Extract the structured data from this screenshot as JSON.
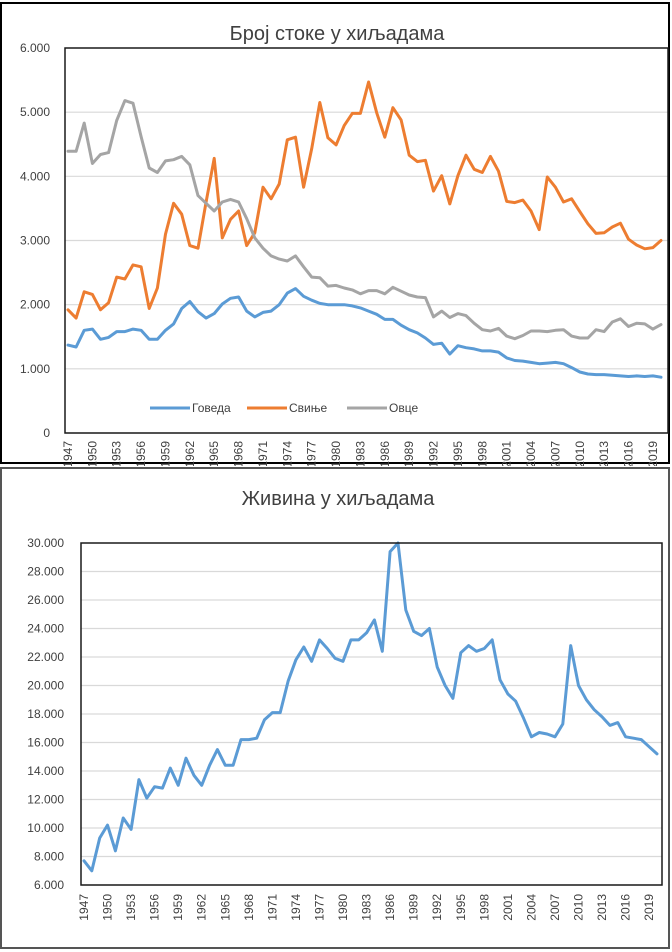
{
  "chart_data": [
    {
      "type": "line",
      "title": "Број стоке у хиљадама",
      "xlabel": "",
      "ylabel": "",
      "ylim": [
        0,
        6000
      ],
      "yticks": [
        "0",
        "1.000",
        "2.000",
        "3.000",
        "4.000",
        "5.000",
        "6.000"
      ],
      "ytick_values": [
        0,
        1000,
        2000,
        3000,
        4000,
        5000,
        6000
      ],
      "grid": true,
      "legend": "bottom-inside",
      "x": [
        1947,
        1948,
        1949,
        1950,
        1951,
        1952,
        1953,
        1954,
        1955,
        1956,
        1957,
        1958,
        1959,
        1960,
        1961,
        1962,
        1963,
        1964,
        1965,
        1966,
        1967,
        1968,
        1969,
        1970,
        1971,
        1972,
        1973,
        1974,
        1975,
        1976,
        1977,
        1978,
        1979,
        1980,
        1981,
        1982,
        1983,
        1984,
        1985,
        1986,
        1987,
        1988,
        1989,
        1990,
        1991,
        1992,
        1993,
        1994,
        1995,
        1996,
        1997,
        1998,
        1999,
        2000,
        2001,
        2002,
        2003,
        2004,
        2005,
        2006,
        2007,
        2008,
        2009,
        2010,
        2011,
        2012,
        2013,
        2014,
        2015,
        2016,
        2017,
        2018,
        2019,
        2020
      ],
      "xtick_labels": [
        "1947",
        "1950",
        "1953",
        "1956",
        "1959",
        "1962",
        "1965",
        "1968",
        "1971",
        "1974",
        "1977",
        "1980",
        "1983",
        "1986",
        "1989",
        "1992",
        "1995",
        "1998",
        "2001",
        "2004",
        "2007",
        "2010",
        "2013",
        "2016",
        "2019"
      ],
      "series": [
        {
          "name": "Говеда",
          "color": "#5B9BD5",
          "values": [
            1370,
            1340,
            1600,
            1620,
            1460,
            1490,
            1580,
            1580,
            1620,
            1600,
            1460,
            1460,
            1600,
            1700,
            1940,
            2050,
            1890,
            1790,
            1860,
            2010,
            2100,
            2120,
            1900,
            1810,
            1880,
            1900,
            2000,
            2180,
            2250,
            2130,
            2070,
            2020,
            2000,
            2000,
            2000,
            1980,
            1950,
            1900,
            1850,
            1770,
            1770,
            1680,
            1610,
            1560,
            1480,
            1380,
            1400,
            1230,
            1360,
            1330,
            1310,
            1280,
            1280,
            1260,
            1170,
            1130,
            1120,
            1100,
            1080,
            1090,
            1100,
            1080,
            1020,
            950,
            920,
            910,
            910,
            900,
            890,
            880,
            890,
            880,
            890,
            870
          ]
        },
        {
          "name": "Свиње",
          "color": "#ED7D31",
          "values": [
            1920,
            1790,
            2200,
            2160,
            1920,
            2030,
            2430,
            2400,
            2620,
            2590,
            1940,
            2260,
            3100,
            3580,
            3410,
            2920,
            2880,
            3600,
            4280,
            3040,
            3330,
            3460,
            2920,
            3120,
            3830,
            3650,
            3880,
            4570,
            4610,
            3830,
            4430,
            5150,
            4600,
            4490,
            4790,
            4980,
            4980,
            5470,
            4990,
            4610,
            5070,
            4880,
            4330,
            4230,
            4250,
            3770,
            4010,
            3570,
            4010,
            4330,
            4110,
            4060,
            4310,
            4080,
            3610,
            3590,
            3630,
            3460,
            3170,
            3990,
            3830,
            3600,
            3650,
            3450,
            3260,
            3110,
            3120,
            3210,
            3270,
            3020,
            2930,
            2870,
            2890,
            3000
          ]
        },
        {
          "name": "Овце",
          "color": "#A5A5A5",
          "values": [
            4390,
            4390,
            4830,
            4200,
            4340,
            4370,
            4870,
            5180,
            5140,
            4620,
            4130,
            4060,
            4240,
            4260,
            4310,
            4180,
            3700,
            3580,
            3460,
            3600,
            3640,
            3600,
            3340,
            3040,
            2880,
            2760,
            2710,
            2680,
            2760,
            2590,
            2430,
            2420,
            2290,
            2300,
            2260,
            2230,
            2170,
            2220,
            2220,
            2170,
            2270,
            2210,
            2150,
            2120,
            2110,
            1810,
            1900,
            1800,
            1860,
            1830,
            1710,
            1610,
            1590,
            1630,
            1510,
            1470,
            1520,
            1590,
            1590,
            1580,
            1600,
            1610,
            1510,
            1480,
            1480,
            1610,
            1580,
            1730,
            1780,
            1660,
            1710,
            1700,
            1620,
            1690
          ]
        }
      ]
    },
    {
      "type": "line",
      "title": "Живина у хиљадама",
      "xlabel": "",
      "ylabel": "",
      "ylim": [
        6000,
        30000
      ],
      "yticks": [
        "6.000",
        "8.000",
        "10.000",
        "12.000",
        "14.000",
        "16.000",
        "18.000",
        "20.000",
        "22.000",
        "24.000",
        "26.000",
        "28.000",
        "30.000"
      ],
      "ytick_values": [
        6000,
        8000,
        10000,
        12000,
        14000,
        16000,
        18000,
        20000,
        22000,
        24000,
        26000,
        28000,
        30000
      ],
      "grid": true,
      "legend": "none",
      "x": [
        1947,
        1948,
        1949,
        1950,
        1951,
        1952,
        1953,
        1954,
        1955,
        1956,
        1957,
        1958,
        1959,
        1960,
        1961,
        1962,
        1963,
        1964,
        1965,
        1966,
        1967,
        1968,
        1969,
        1970,
        1971,
        1972,
        1973,
        1974,
        1975,
        1976,
        1977,
        1978,
        1979,
        1980,
        1981,
        1982,
        1983,
        1984,
        1985,
        1986,
        1987,
        1988,
        1989,
        1990,
        1991,
        1992,
        1993,
        1994,
        1995,
        1996,
        1997,
        1998,
        1999,
        2000,
        2001,
        2002,
        2003,
        2004,
        2005,
        2006,
        2007,
        2008,
        2009,
        2010,
        2011,
        2012,
        2013,
        2014,
        2015,
        2016,
        2017,
        2018,
        2019,
        2020
      ],
      "xtick_labels": [
        "1947",
        "1950",
        "1953",
        "1956",
        "1959",
        "1962",
        "1965",
        "1968",
        "1971",
        "1974",
        "1977",
        "1980",
        "1983",
        "1986",
        "1989",
        "1992",
        "1995",
        "1998",
        "2001",
        "2004",
        "2007",
        "2010",
        "2013",
        "2016",
        "2019"
      ],
      "series": [
        {
          "name": "Живина",
          "color": "#5B9BD5",
          "values": [
            7700,
            7000,
            9300,
            10200,
            8400,
            10700,
            9900,
            13400,
            12100,
            12900,
            12800,
            14200,
            13000,
            14900,
            13700,
            13000,
            14400,
            15500,
            14400,
            14400,
            16200,
            16200,
            16300,
            17600,
            18100,
            18100,
            20300,
            21800,
            22700,
            21700,
            23200,
            22600,
            21900,
            21700,
            23200,
            23200,
            23700,
            24600,
            22400,
            29400,
            30000,
            25300,
            23800,
            23500,
            24000,
            21300,
            20000,
            19100,
            22300,
            22800,
            22400,
            22600,
            23200,
            20400,
            19400,
            18900,
            17700,
            16400,
            16700,
            16600,
            16400,
            17300,
            22800,
            20000,
            19000,
            18300,
            17800,
            17200,
            17400,
            16400,
            16300,
            16200,
            15700,
            15200
          ]
        }
      ]
    }
  ]
}
